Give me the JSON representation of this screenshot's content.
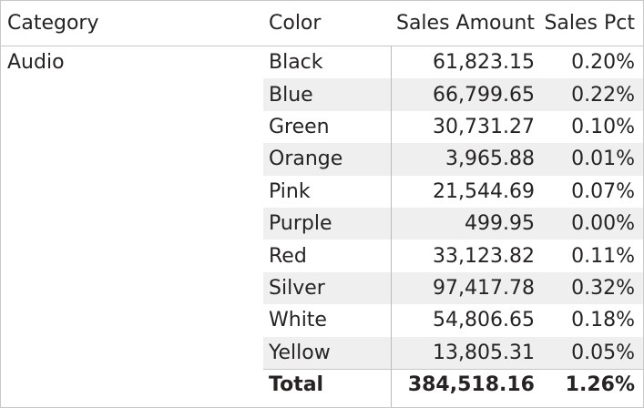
{
  "table": {
    "headers": {
      "category": "Category",
      "color": "Color",
      "sales_amount": "Sales Amount",
      "sales_pct": "Sales Pct"
    },
    "category_label": "Audio",
    "rows": [
      {
        "color": "Black",
        "amount": "61,823.15",
        "pct": "0.20%"
      },
      {
        "color": "Blue",
        "amount": "66,799.65",
        "pct": "0.22%"
      },
      {
        "color": "Green",
        "amount": "30,731.27",
        "pct": "0.10%"
      },
      {
        "color": "Orange",
        "amount": "3,965.88",
        "pct": "0.01%"
      },
      {
        "color": "Pink",
        "amount": "21,544.69",
        "pct": "0.07%"
      },
      {
        "color": "Purple",
        "amount": "499.95",
        "pct": "0.00%"
      },
      {
        "color": "Red",
        "amount": "33,123.82",
        "pct": "0.11%"
      },
      {
        "color": "Silver",
        "amount": "97,417.78",
        "pct": "0.32%"
      },
      {
        "color": "White",
        "amount": "54,806.65",
        "pct": "0.18%"
      },
      {
        "color": "Yellow",
        "amount": "13,805.31",
        "pct": "0.05%"
      }
    ],
    "total": {
      "label": "Total",
      "amount": "384,518.16",
      "pct": "1.26%"
    }
  },
  "colors": {
    "separator": "#8ccfc6",
    "band": "#efefef",
    "border": "#c8c8c8",
    "text": "#252423"
  }
}
